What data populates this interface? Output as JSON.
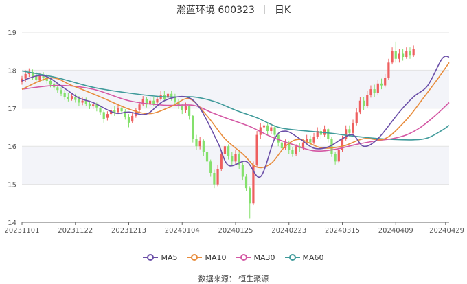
{
  "title": {
    "stock": "瀚蓝环境 600323",
    "period": "日K"
  },
  "source": "数据来源： 恒生聚源",
  "colors": {
    "up": "#ee5f5f",
    "down": "#84e06c",
    "ma5": "#6b4fa8",
    "ma10": "#e88c3c",
    "ma30": "#d458a4",
    "ma60": "#3f9a9a",
    "band": "#f3f4f9"
  },
  "chart_data": {
    "type": "candlestick",
    "ylim": [
      14,
      19
    ],
    "yticks": [
      14,
      15,
      16,
      17,
      18,
      19
    ],
    "xticks": [
      "20231101",
      "20231122",
      "20231213",
      "20240104",
      "20240125",
      "20240223",
      "20240315",
      "20240409",
      "20240429"
    ],
    "xtick_positions": [
      0,
      15,
      30,
      45,
      60,
      75,
      90,
      105,
      119
    ],
    "legend": [
      "MA5",
      "MA10",
      "MA30",
      "MA60"
    ],
    "ma_anchors": {
      "MA5": [
        [
          0,
          17.72
        ],
        [
          6,
          17.86
        ],
        [
          12,
          17.52
        ],
        [
          16,
          17.27
        ],
        [
          20,
          17.15
        ],
        [
          26,
          16.88
        ],
        [
          30,
          16.9
        ],
        [
          35,
          16.85
        ],
        [
          40,
          17.2
        ],
        [
          46,
          17.3
        ],
        [
          50,
          17.0
        ],
        [
          55,
          16.1
        ],
        [
          58,
          15.5
        ],
        [
          63,
          15.6
        ],
        [
          67,
          15.2
        ],
        [
          71,
          16.2
        ],
        [
          74,
          16.4
        ],
        [
          78,
          16.2
        ],
        [
          82,
          15.95
        ],
        [
          86,
          15.98
        ],
        [
          90,
          16.2
        ],
        [
          93,
          16.3
        ],
        [
          96,
          16.0
        ],
        [
          100,
          16.2
        ],
        [
          106,
          16.9
        ],
        [
          110,
          17.3
        ],
        [
          114,
          17.6
        ],
        [
          118,
          18.3
        ],
        [
          120,
          18.35
        ]
      ],
      "MA10": [
        [
          0,
          17.5
        ],
        [
          8,
          17.8
        ],
        [
          14,
          17.6
        ],
        [
          22,
          17.3
        ],
        [
          30,
          16.98
        ],
        [
          36,
          16.86
        ],
        [
          42,
          17.05
        ],
        [
          47,
          17.25
        ],
        [
          52,
          16.8
        ],
        [
          57,
          16.2
        ],
        [
          62,
          15.8
        ],
        [
          66,
          15.45
        ],
        [
          70,
          15.55
        ],
        [
          74,
          16.0
        ],
        [
          78,
          16.18
        ],
        [
          84,
          15.96
        ],
        [
          90,
          16.0
        ],
        [
          96,
          16.2
        ],
        [
          102,
          16.2
        ],
        [
          108,
          16.7
        ],
        [
          113,
          17.3
        ],
        [
          117,
          17.8
        ],
        [
          120,
          18.2
        ]
      ],
      "MA30": [
        [
          0,
          17.5
        ],
        [
          10,
          17.6
        ],
        [
          20,
          17.5
        ],
        [
          30,
          17.2
        ],
        [
          40,
          17.08
        ],
        [
          48,
          17.08
        ],
        [
          53,
          16.9
        ],
        [
          58,
          16.72
        ],
        [
          64,
          16.52
        ],
        [
          70,
          16.25
        ],
        [
          76,
          16.05
        ],
        [
          82,
          15.88
        ],
        [
          88,
          15.92
        ],
        [
          94,
          16.05
        ],
        [
          100,
          16.15
        ],
        [
          104,
          16.2
        ],
        [
          108,
          16.3
        ],
        [
          112,
          16.5
        ],
        [
          116,
          16.8
        ],
        [
          120,
          17.15
        ]
      ],
      "MA60": [
        [
          0,
          17.98
        ],
        [
          10,
          17.8
        ],
        [
          20,
          17.55
        ],
        [
          30,
          17.4
        ],
        [
          40,
          17.3
        ],
        [
          48,
          17.3
        ],
        [
          54,
          17.18
        ],
        [
          60,
          16.95
        ],
        [
          66,
          16.75
        ],
        [
          72,
          16.5
        ],
        [
          78,
          16.42
        ],
        [
          86,
          16.35
        ],
        [
          92,
          16.28
        ],
        [
          98,
          16.22
        ],
        [
          104,
          16.18
        ],
        [
          110,
          16.17
        ],
        [
          114,
          16.22
        ],
        [
          118,
          16.42
        ],
        [
          120,
          16.55
        ]
      ]
    },
    "candles": [
      [
        0,
        17.7,
        17.78,
        17.85,
        17.62
      ],
      [
        1,
        17.78,
        17.9,
        18.0,
        17.7
      ],
      [
        2,
        17.9,
        17.95,
        18.05,
        17.82
      ],
      [
        3,
        17.95,
        17.82,
        18.02,
        17.75
      ],
      [
        4,
        17.85,
        17.75,
        17.95,
        17.68
      ],
      [
        5,
        17.75,
        17.85,
        17.92,
        17.7
      ],
      [
        6,
        17.88,
        17.8,
        17.95,
        17.72
      ],
      [
        7,
        17.82,
        17.72,
        17.9,
        17.65
      ],
      [
        8,
        17.72,
        17.62,
        17.8,
        17.55
      ],
      [
        9,
        17.65,
        17.55,
        17.72,
        17.48
      ],
      [
        10,
        17.55,
        17.48,
        17.62,
        17.4
      ],
      [
        11,
        17.48,
        17.38,
        17.55,
        17.32
      ],
      [
        12,
        17.4,
        17.3,
        17.48,
        17.22
      ],
      [
        13,
        17.3,
        17.25,
        17.4,
        17.18
      ],
      [
        14,
        17.25,
        17.32,
        17.4,
        17.2
      ],
      [
        15,
        17.3,
        17.22,
        17.38,
        17.15
      ],
      [
        16,
        17.25,
        17.15,
        17.32,
        17.05
      ],
      [
        17,
        17.15,
        17.2,
        17.28,
        17.08
      ],
      [
        18,
        17.2,
        17.12,
        17.28,
        17.05
      ],
      [
        19,
        17.12,
        17.05,
        17.2,
        16.98
      ],
      [
        20,
        17.05,
        17.1,
        17.18,
        16.98
      ],
      [
        21,
        17.1,
        17.02,
        17.15,
        16.92
      ],
      [
        22,
        17.0,
        16.9,
        17.08,
        16.82
      ],
      [
        23,
        16.9,
        16.72,
        16.95,
        16.62
      ],
      [
        24,
        16.75,
        16.85,
        16.92,
        16.68
      ],
      [
        25,
        16.85,
        16.95,
        17.02,
        16.8
      ],
      [
        26,
        16.95,
        16.88,
        17.05,
        16.8
      ],
      [
        27,
        16.9,
        17.0,
        17.08,
        16.85
      ],
      [
        28,
        17.0,
        16.92,
        17.05,
        16.85
      ],
      [
        29,
        16.92,
        16.78,
        16.98,
        16.7
      ],
      [
        30,
        16.78,
        16.62,
        16.85,
        16.5
      ],
      [
        31,
        16.65,
        16.8,
        16.9,
        16.6
      ],
      [
        32,
        16.8,
        16.95,
        17.0,
        16.75
      ],
      [
        33,
        16.95,
        17.1,
        17.18,
        16.9
      ],
      [
        34,
        17.1,
        17.25,
        17.32,
        17.05
      ],
      [
        35,
        17.25,
        17.1,
        17.3,
        17.02
      ],
      [
        36,
        17.1,
        17.2,
        17.28,
        17.05
      ],
      [
        37,
        17.2,
        17.12,
        17.3,
        17.05
      ],
      [
        38,
        17.15,
        17.25,
        17.32,
        17.1
      ],
      [
        39,
        17.25,
        17.35,
        17.45,
        17.2
      ],
      [
        40,
        17.35,
        17.25,
        17.45,
        17.18
      ],
      [
        41,
        17.28,
        17.38,
        17.5,
        17.22
      ],
      [
        42,
        17.38,
        17.3,
        17.45,
        17.2
      ],
      [
        43,
        17.3,
        17.18,
        17.38,
        17.1
      ],
      [
        44,
        17.18,
        17.05,
        17.25,
        16.98
      ],
      [
        45,
        17.05,
        16.95,
        17.12,
        16.85
      ],
      [
        46,
        16.95,
        17.05,
        17.15,
        16.88
      ],
      [
        47,
        17.05,
        16.8,
        17.08,
        16.7
      ],
      [
        48,
        16.8,
        16.2,
        16.82,
        16.1
      ],
      [
        49,
        16.2,
        16.0,
        16.3,
        15.9
      ],
      [
        50,
        16.0,
        16.15,
        16.25,
        15.92
      ],
      [
        51,
        16.15,
        15.85,
        16.18,
        15.75
      ],
      [
        52,
        15.85,
        15.6,
        15.9,
        15.5
      ],
      [
        53,
        15.6,
        15.3,
        15.65,
        15.2
      ],
      [
        54,
        15.3,
        15.0,
        15.38,
        14.9
      ],
      [
        55,
        15.0,
        15.4,
        15.5,
        14.95
      ],
      [
        56,
        15.4,
        15.8,
        15.9,
        15.35
      ],
      [
        57,
        15.8,
        16.0,
        16.05,
        15.7
      ],
      [
        58,
        16.0,
        15.75,
        16.05,
        15.65
      ],
      [
        59,
        15.75,
        15.6,
        15.85,
        15.5
      ],
      [
        60,
        15.6,
        15.8,
        15.9,
        15.5
      ],
      [
        61,
        15.8,
        15.5,
        15.85,
        15.4
      ],
      [
        62,
        15.5,
        15.2,
        15.58,
        15.1
      ],
      [
        63,
        15.2,
        14.9,
        15.28,
        14.82
      ],
      [
        64,
        14.9,
        14.5,
        14.95,
        14.1
      ],
      [
        65,
        14.5,
        15.5,
        15.6,
        14.45
      ],
      [
        66,
        15.5,
        16.3,
        16.4,
        15.45
      ],
      [
        67,
        16.3,
        16.5,
        16.6,
        16.2
      ],
      [
        68,
        16.5,
        16.55,
        16.68,
        16.4
      ],
      [
        69,
        16.55,
        16.4,
        16.62,
        16.3
      ],
      [
        70,
        16.4,
        16.5,
        16.6,
        16.32
      ],
      [
        71,
        16.5,
        16.3,
        16.55,
        16.2
      ],
      [
        72,
        16.3,
        16.1,
        16.35,
        16.0
      ],
      [
        73,
        16.1,
        15.95,
        16.15,
        15.85
      ],
      [
        74,
        15.95,
        16.1,
        16.18,
        15.9
      ],
      [
        75,
        16.1,
        15.9,
        16.15,
        15.8
      ],
      [
        76,
        15.9,
        15.8,
        15.98,
        15.72
      ],
      [
        77,
        15.8,
        16.0,
        16.05,
        15.75
      ],
      [
        78,
        16.0,
        15.95,
        16.08,
        15.85
      ],
      [
        79,
        15.95,
        16.1,
        16.18,
        15.9
      ],
      [
        80,
        16.1,
        16.2,
        16.3,
        16.05
      ],
      [
        81,
        16.2,
        16.1,
        16.28,
        16.02
      ],
      [
        82,
        16.1,
        16.25,
        16.35,
        16.05
      ],
      [
        83,
        16.25,
        16.4,
        16.5,
        16.2
      ],
      [
        84,
        16.4,
        16.3,
        16.48,
        16.2
      ],
      [
        85,
        16.3,
        16.45,
        16.55,
        16.25
      ],
      [
        86,
        16.45,
        16.2,
        16.48,
        16.1
      ],
      [
        87,
        16.2,
        15.8,
        16.25,
        15.72
      ],
      [
        88,
        15.8,
        15.6,
        15.85,
        15.52
      ],
      [
        89,
        15.6,
        15.9,
        16.0,
        15.55
      ],
      [
        90,
        15.9,
        16.2,
        16.28,
        15.85
      ],
      [
        91,
        16.2,
        16.45,
        16.55,
        16.15
      ],
      [
        92,
        16.45,
        16.35,
        16.55,
        16.25
      ],
      [
        93,
        16.35,
        16.6,
        16.7,
        16.3
      ],
      [
        94,
        16.6,
        16.9,
        17.0,
        16.55
      ],
      [
        95,
        16.9,
        17.2,
        17.3,
        16.85
      ],
      [
        96,
        17.2,
        17.05,
        17.3,
        16.95
      ],
      [
        97,
        17.05,
        17.35,
        17.45,
        17.0
      ],
      [
        98,
        17.35,
        17.5,
        17.6,
        17.28
      ],
      [
        99,
        17.5,
        17.4,
        17.62,
        17.3
      ],
      [
        100,
        17.4,
        17.65,
        17.75,
        17.35
      ],
      [
        101,
        17.65,
        17.6,
        17.78,
        17.5
      ],
      [
        102,
        17.6,
        17.8,
        17.9,
        17.55
      ],
      [
        103,
        17.8,
        18.2,
        18.3,
        17.75
      ],
      [
        104,
        18.2,
        18.5,
        18.6,
        18.15
      ],
      [
        105,
        18.5,
        18.3,
        18.75,
        18.2
      ],
      [
        106,
        18.3,
        18.45,
        18.55,
        18.2
      ],
      [
        107,
        18.45,
        18.35,
        18.55,
        18.25
      ],
      [
        108,
        18.35,
        18.5,
        18.6,
        18.3
      ],
      [
        109,
        18.5,
        18.4,
        18.6,
        18.3
      ],
      [
        110,
        18.4,
        18.55,
        18.65,
        18.35
      ]
    ]
  }
}
